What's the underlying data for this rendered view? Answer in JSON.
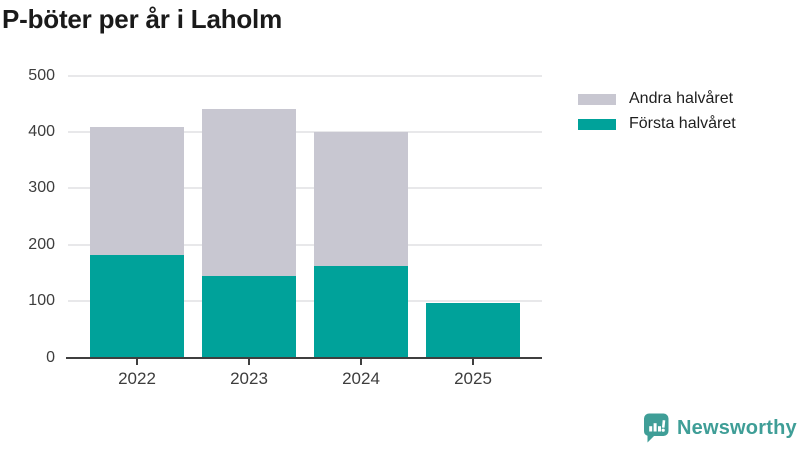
{
  "title": "P-böter per år i Laholm",
  "legend": {
    "items": [
      {
        "label": "Andra halvåret",
        "color": "#c8c7d1"
      },
      {
        "label": "Första halvåret",
        "color": "#00a29a"
      }
    ]
  },
  "logo": {
    "icon": "newsworthy-speech-bubble-bar-chart-icon",
    "text": "Newsworthy",
    "color": "#3f9e97"
  },
  "colors": {
    "forsta_halvaret_teal": "#00a29a",
    "andra_halvaret_gray": "#c8c7d1",
    "gridline": "#e8e8ea",
    "axis": "#3f3f3f",
    "title_text": "#1a1a1a",
    "tick_text": "#3d3d3d"
  },
  "chart_data": {
    "type": "bar",
    "stacked": true,
    "title": "P-böter per år i Laholm",
    "categories": [
      "2022",
      "2023",
      "2024",
      "2025"
    ],
    "series": [
      {
        "name": "Första halvåret",
        "color": "#00a29a",
        "values": [
          181,
          145,
          162,
          97
        ]
      },
      {
        "name": "Andra halvåret",
        "color": "#c8c7d1",
        "values": [
          228,
          296,
          237,
          0
        ]
      }
    ],
    "totals": [
      409,
      441,
      399,
      97
    ],
    "xlabel": "",
    "ylabel": "",
    "ylim": [
      0,
      500
    ],
    "yticks": [
      0,
      100,
      200,
      300,
      400,
      500
    ],
    "grid": true,
    "legend_position": "right",
    "legend_order": [
      "Andra halvåret",
      "Första halvåret"
    ]
  }
}
